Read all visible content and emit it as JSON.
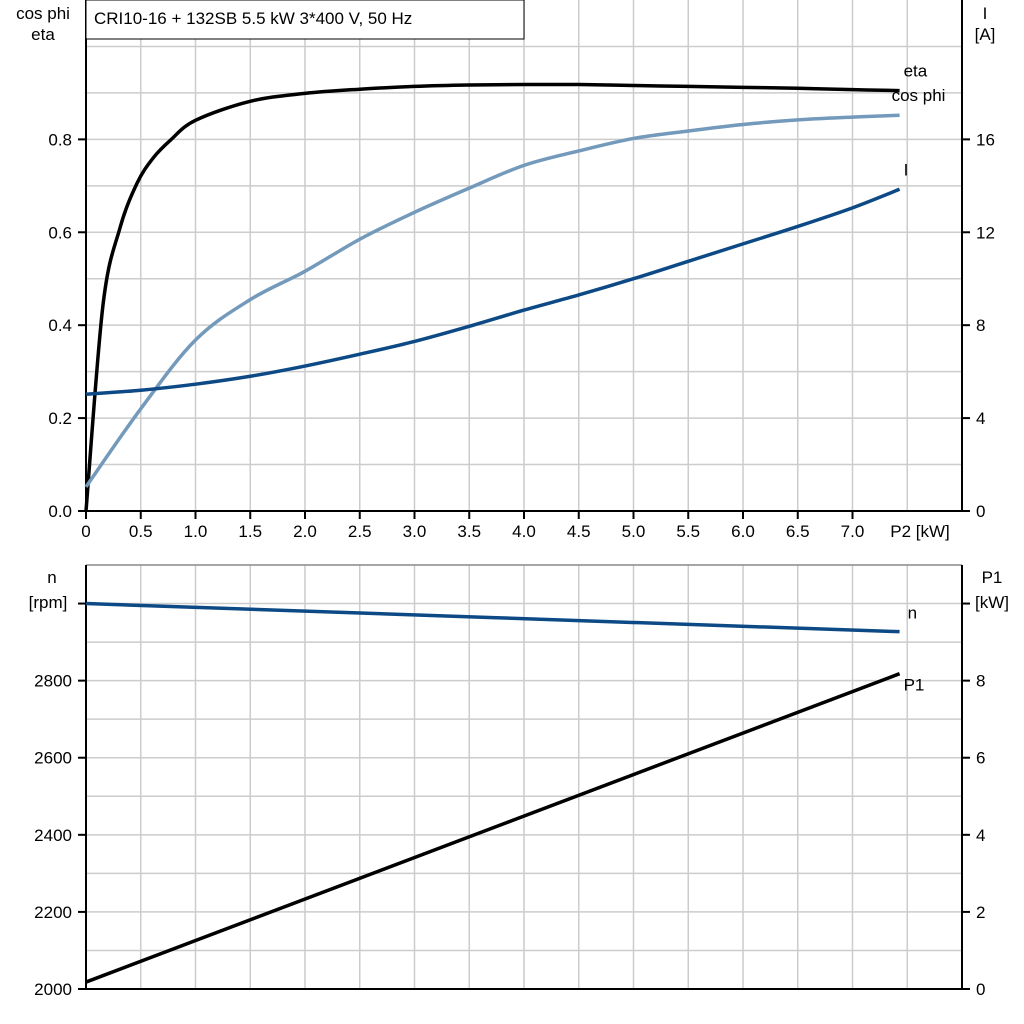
{
  "title": "CRI10-16 + 132SB   5.5 kW   3*400 V, 50 Hz",
  "colors": {
    "eta": "#000000",
    "cos_phi": "#7399bb",
    "I": "#0d4a85",
    "n": "#0d4a85",
    "P1": "#000000",
    "grid": "#cccccc"
  },
  "chart_data": [
    {
      "type": "line",
      "xlabel": "P2 [kW]",
      "x_ticks": [
        "0",
        "0.5",
        "1.0",
        "1.5",
        "2.0",
        "2.5",
        "3.0",
        "3.5",
        "4.0",
        "4.5",
        "5.0",
        "5.5",
        "6.0",
        "6.5",
        "7.0"
      ],
      "xlim": [
        0,
        8
      ],
      "ylabel_left": [
        "cos phi",
        "eta"
      ],
      "ylim_left": [
        0,
        1.1
      ],
      "y_ticks_left": [
        "0.0",
        "0.2",
        "0.4",
        "0.6",
        "0.8"
      ],
      "ylabel_right": [
        "I",
        "[A]"
      ],
      "ylim_right": [
        0,
        22
      ],
      "y_ticks_right": [
        "0",
        "4",
        "8",
        "12",
        "16"
      ],
      "grid": true,
      "series": [
        {
          "name": "eta",
          "axis": "left",
          "color": "#000000",
          "x": [
            0,
            0.155,
            0.31,
            0.465,
            0.61,
            0.77,
            1.0,
            1.5,
            2.0,
            2.5,
            3.0,
            3.5,
            4.0,
            4.5,
            5.0,
            5.5,
            6.0,
            6.5,
            7.0,
            7.43
          ],
          "y": [
            0.0,
            0.443,
            0.609,
            0.705,
            0.759,
            0.798,
            0.841,
            0.882,
            0.899,
            0.908,
            0.914,
            0.917,
            0.918,
            0.918,
            0.916,
            0.914,
            0.912,
            0.91,
            0.907,
            0.905
          ]
        },
        {
          "name": "cos phi",
          "axis": "left",
          "color": "#7399bb",
          "x": [
            0,
            0.5,
            1.0,
            1.5,
            2.0,
            2.5,
            3.0,
            3.5,
            4.0,
            4.5,
            5.0,
            5.5,
            6.0,
            6.5,
            7.0,
            7.43
          ],
          "y": [
            0.052,
            0.22,
            0.368,
            0.455,
            0.516,
            0.585,
            0.643,
            0.695,
            0.744,
            0.775,
            0.802,
            0.818,
            0.832,
            0.842,
            0.848,
            0.852
          ]
        },
        {
          "name": "I",
          "axis": "right",
          "color": "#0d4a85",
          "x": [
            0,
            0.5,
            1.0,
            1.5,
            2.0,
            2.5,
            3.0,
            3.5,
            4.0,
            4.5,
            5.0,
            5.5,
            6.0,
            6.5,
            7.0,
            7.43
          ],
          "y": [
            5.03,
            5.2,
            5.46,
            5.8,
            6.24,
            6.75,
            7.3,
            7.95,
            8.65,
            9.3,
            10.0,
            10.75,
            11.5,
            12.25,
            13.05,
            13.85
          ]
        }
      ]
    },
    {
      "type": "line",
      "xlim": [
        0,
        8
      ],
      "ylabel_left": [
        "n",
        "[rpm]"
      ],
      "ylim_left": [
        2000,
        3100
      ],
      "y_ticks_left": [
        "2000",
        "2200",
        "2400",
        "2600",
        "2800"
      ],
      "ylabel_right": [
        "P1",
        "[kW]"
      ],
      "ylim_right": [
        0,
        11
      ],
      "y_ticks_right": [
        "0",
        "2",
        "4",
        "6",
        "8"
      ],
      "grid": true,
      "series": [
        {
          "name": "n",
          "axis": "left",
          "color": "#0d4a85",
          "x": [
            0,
            7.43
          ],
          "y": [
            3000,
            2927
          ]
        },
        {
          "name": "P1",
          "axis": "right",
          "color": "#000000",
          "x": [
            0,
            7.43
          ],
          "y": [
            0.18,
            8.18
          ]
        }
      ]
    }
  ]
}
